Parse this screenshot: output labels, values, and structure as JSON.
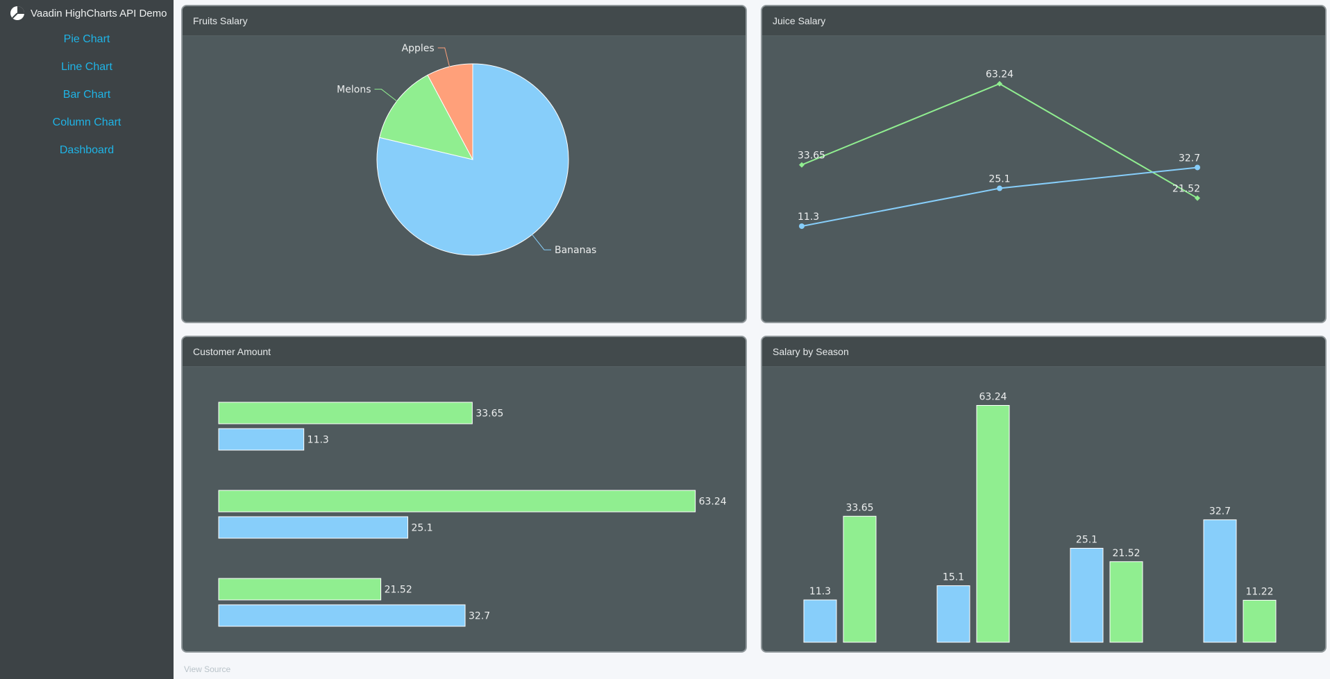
{
  "app": {
    "title": "Vaadin HighCharts API Demo",
    "icon": "pie-chart-logo-icon"
  },
  "nav": {
    "items": [
      {
        "label": "Pie Chart"
      },
      {
        "label": "Line Chart"
      },
      {
        "label": "Bar Chart"
      },
      {
        "label": "Column Chart"
      },
      {
        "label": "Dashboard"
      }
    ],
    "link_color": "#1fb4e6"
  },
  "colors": {
    "blue": "#87cefa",
    "green": "#90ee90",
    "salmon": "#ffa07a",
    "card_bg": "#4f5a5d",
    "header_bg": "#424a4c",
    "sidebar_bg": "#3d4346"
  },
  "footer": {
    "view_source": "View Source"
  },
  "chart_data": [
    {
      "id": "fruits",
      "type": "pie",
      "title": "Fruits Salary",
      "slices": [
        {
          "name": "Bananas",
          "value": 78.7,
          "color": "#87cefa"
        },
        {
          "name": "Melons",
          "value": 13.5,
          "color": "#90ee90"
        },
        {
          "name": "Apples",
          "value": 7.8,
          "color": "#ffa07a"
        }
      ]
    },
    {
      "id": "juice",
      "type": "line",
      "title": "Juice Salary",
      "x": [
        0,
        1,
        2
      ],
      "ylim": [
        5,
        70
      ],
      "series": [
        {
          "values": [
            33.65,
            63.24,
            21.52
          ],
          "color": "#90ee90",
          "marker": "diamond"
        },
        {
          "values": [
            11.3,
            25.1,
            32.7
          ],
          "color": "#87cefa",
          "marker": "circle"
        }
      ]
    },
    {
      "id": "customer",
      "type": "bar",
      "orientation": "horizontal",
      "title": "Customer Amount",
      "xlim": [
        0,
        70
      ],
      "groups": [
        {
          "values": [
            33.65,
            11.3
          ]
        },
        {
          "values": [
            63.24,
            25.1
          ]
        },
        {
          "values": [
            21.52,
            32.7
          ]
        }
      ],
      "series_colors": [
        "#90ee90",
        "#87cefa"
      ]
    },
    {
      "id": "season",
      "type": "bar",
      "orientation": "vertical",
      "title": "Salary by Season",
      "ylim": [
        0,
        70
      ],
      "groups": [
        {
          "values": [
            11.3,
            33.65
          ]
        },
        {
          "values": [
            15.1,
            63.24
          ]
        },
        {
          "values": [
            25.1,
            21.52
          ]
        },
        {
          "values": [
            32.7,
            11.22
          ]
        }
      ],
      "series_colors": [
        "#87cefa",
        "#90ee90"
      ]
    }
  ]
}
